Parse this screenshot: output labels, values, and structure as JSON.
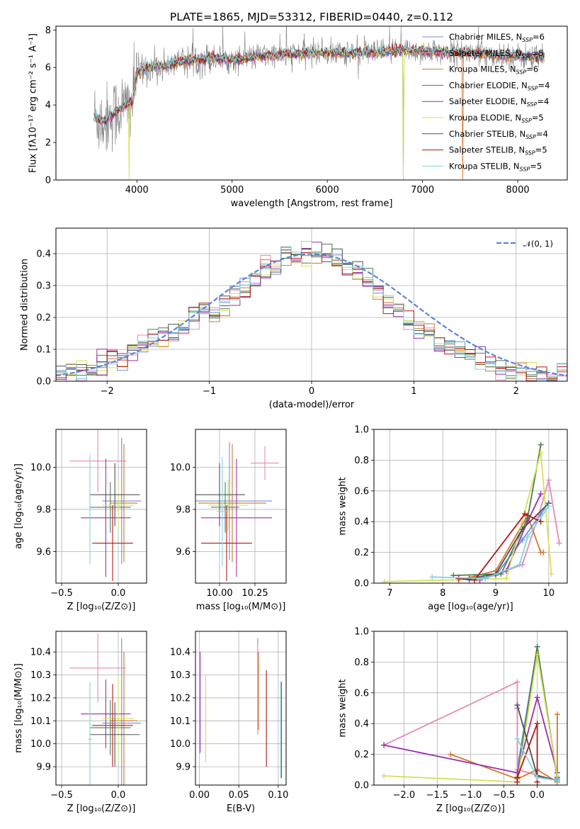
{
  "figure": {
    "title": "PLATE=1865, MJD=53312, FIBERID=0440, z=0.112"
  },
  "palette": {
    "Chabrier MILES": "#6a8fdc",
    "Salpeter MILES": "#e68ab8",
    "Kroupa MILES": "#d4782f",
    "Chabrier ELODIE": "#4f7d4f",
    "Salpeter ELODIE": "#9a2fb0",
    "Kroupa ELODIE": "#d7e05a",
    "Chabrier STELIB": "#505050",
    "Salpeter STELIB": "#b01818",
    "Kroupa STELIB": "#7fd6e0"
  },
  "chart_data": [
    {
      "id": "spectrum",
      "type": "line",
      "xlabel": "wavelength [Angstrom, rest frame]",
      "ylabel": "Flux [fλ10⁻¹⁷ erg cm⁻² s⁻¹ A⁻¹]",
      "xlim": [
        3150,
        8520
      ],
      "ylim": [
        0,
        8.2
      ],
      "xticks": [
        "4000",
        "5000",
        "6000",
        "7000",
        "8000"
      ],
      "xtick_values": [
        4000,
        5000,
        6000,
        7000,
        8000
      ],
      "yticks": [
        "0",
        "2",
        "4",
        "6",
        "8"
      ],
      "ytick_values": [
        0,
        2,
        4,
        6,
        8
      ],
      "grid": false,
      "legend_position": "top-right",
      "legend": [
        {
          "label": "Chabrier MILES, N",
          "sub": "SSP",
          "suffix": "=6"
        },
        {
          "label": "Salpeter MILES, N",
          "sub": "SSP",
          "suffix": "=5"
        },
        {
          "label": "Kroupa MILES, N",
          "sub": "SSP",
          "suffix": "=6"
        },
        {
          "label": "Chabrier ELODIE, N",
          "sub": "SSP",
          "suffix": "=4"
        },
        {
          "label": "Salpeter ELODIE, N",
          "sub": "SSP",
          "suffix": "=4"
        },
        {
          "label": "Kroupa ELODIE, N",
          "sub": "SSP",
          "suffix": "=5"
        },
        {
          "label": "Chabrier STELIB, N",
          "sub": "SSP",
          "suffix": "=4"
        },
        {
          "label": "Salpeter STELIB, N",
          "sub": "SSP",
          "suffix": "=5"
        },
        {
          "label": "Kroupa STELIB, N",
          "sub": "SSP",
          "suffix": "=5"
        }
      ],
      "continuum_knots": {
        "x": [
          3550,
          3650,
          3750,
          3850,
          3950,
          4000,
          4100,
          4300,
          4500,
          4800,
          5000,
          5300,
          5600,
          5900,
          6200,
          6500,
          6800,
          7100,
          7400,
          7700,
          8000,
          8250
        ],
        "y": [
          3.4,
          3.1,
          3.5,
          3.9,
          4.1,
          5.7,
          6.0,
          6.1,
          6.35,
          6.5,
          6.4,
          6.6,
          6.7,
          6.8,
          6.75,
          6.8,
          6.9,
          6.85,
          6.8,
          6.7,
          6.6,
          6.5
        ]
      }
    },
    {
      "id": "residuals",
      "type": "step",
      "xlabel": "(data-model)/error",
      "ylabel": "Normed distribution",
      "xlim": [
        -2.5,
        2.5
      ],
      "ylim": [
        0,
        0.48
      ],
      "xticks": [
        "−2",
        "−1",
        "0",
        "1",
        "2"
      ],
      "xtick_values": [
        -2,
        -1,
        0,
        1,
        2
      ],
      "yticks": [
        "0.0",
        "0.1",
        "0.2",
        "0.3",
        "0.4"
      ],
      "ytick_values": [
        0,
        0.1,
        0.2,
        0.3,
        0.4
      ],
      "grid": true,
      "legend_position": "top-right",
      "legend_label": "𝒩(0, 1)",
      "bin_edges_start": -2.5,
      "bin_width": 0.1,
      "hist": [
        0.02,
        0.03,
        0.03,
        0.035,
        0.05,
        0.07,
        0.08,
        0.09,
        0.11,
        0.13,
        0.14,
        0.15,
        0.17,
        0.2,
        0.22,
        0.21,
        0.25,
        0.28,
        0.3,
        0.33,
        0.35,
        0.36,
        0.38,
        0.39,
        0.4,
        0.41,
        0.39,
        0.38,
        0.36,
        0.34,
        0.31,
        0.28,
        0.25,
        0.22,
        0.19,
        0.17,
        0.15,
        0.13,
        0.11,
        0.09,
        0.08,
        0.06,
        0.05,
        0.045,
        0.035,
        0.03,
        0.025,
        0.02,
        0.02,
        0.015
      ]
    },
    {
      "id": "age-vs-Z",
      "type": "errorbar",
      "xlabel": "Z [log₁₀(Z/Z⊙)]",
      "ylabel": "age  [log₁₀(age/yr)]",
      "xlim": [
        -0.55,
        0.25
      ],
      "ylim": [
        9.45,
        10.18
      ],
      "xticks": [
        "−0.5",
        "0.0"
      ],
      "xtick_values": [
        -0.5,
        0.0
      ],
      "yticks": [
        "9.6",
        "9.8",
        "10.0"
      ],
      "ytick_values": [
        9.6,
        9.8,
        10.0
      ],
      "grid": true,
      "points": [
        {
          "series": "Chabrier MILES",
          "x": 0.03,
          "y": 9.84,
          "xerr": 0.17,
          "yerr": 0.3
        },
        {
          "series": "Salpeter MILES",
          "x": -0.18,
          "y": 10.03,
          "xerr": 0.25,
          "yerr": 0.15
        },
        {
          "series": "Kroupa MILES",
          "x": 0.05,
          "y": 9.83,
          "xerr": 0.12,
          "yerr": 0.28
        },
        {
          "series": "Chabrier ELODIE",
          "x": -0.07,
          "y": 9.81,
          "xerr": 0.18,
          "yerr": 0.12
        },
        {
          "series": "Salpeter ELODIE",
          "x": -0.11,
          "y": 9.76,
          "xerr": 0.22,
          "yerr": 0.28
        },
        {
          "series": "Kroupa ELODIE",
          "x": 0.0,
          "y": 9.82,
          "xerr": 0.14,
          "yerr": 0.12
        },
        {
          "series": "Chabrier STELIB",
          "x": -0.03,
          "y": 9.87,
          "xerr": 0.22,
          "yerr": 0.15
        },
        {
          "series": "Salpeter STELIB",
          "x": -0.05,
          "y": 9.64,
          "xerr": 0.18,
          "yerr": 0.18
        },
        {
          "series": "Kroupa STELIB",
          "x": -0.25,
          "y": 9.8,
          "xerr": 0.02,
          "yerr": 0.26
        }
      ]
    },
    {
      "id": "age-vs-mass",
      "type": "errorbar",
      "xlabel": "mass [log₁₀(M/M⊙)]",
      "ylabel": "",
      "xlim": [
        9.83,
        10.47
      ],
      "ylim": [
        9.45,
        10.18
      ],
      "xticks": [
        "10.00",
        "10.25"
      ],
      "xtick_values": [
        10.0,
        10.25
      ],
      "yticks": [
        "9.6",
        "9.8",
        "10.0"
      ],
      "ytick_values": [
        9.6,
        9.8,
        10.0
      ],
      "grid": true,
      "points": [
        {
          "series": "Chabrier MILES",
          "x": 10.07,
          "y": 9.84,
          "xerr": 0.3,
          "yerr": 0.28
        },
        {
          "series": "Salpeter MILES",
          "x": 10.32,
          "y": 10.02,
          "xerr": 0.1,
          "yerr": 0.08
        },
        {
          "series": "Kroupa MILES",
          "x": 10.09,
          "y": 9.83,
          "xerr": 0.24,
          "yerr": 0.28
        },
        {
          "series": "Chabrier ELODIE",
          "x": 10.04,
          "y": 9.81,
          "xerr": 0.1,
          "yerr": 0.12
        },
        {
          "series": "Salpeter ELODIE",
          "x": 10.12,
          "y": 9.76,
          "xerr": 0.25,
          "yerr": 0.28
        },
        {
          "series": "Kroupa ELODIE",
          "x": 10.06,
          "y": 9.82,
          "xerr": 0.14,
          "yerr": 0.12
        },
        {
          "series": "Chabrier STELIB",
          "x": 10.0,
          "y": 9.87,
          "xerr": 0.18,
          "yerr": 0.15
        },
        {
          "series": "Salpeter STELIB",
          "x": 10.05,
          "y": 9.64,
          "xerr": 0.18,
          "yerr": 0.18
        },
        {
          "series": "Kroupa STELIB",
          "x": 10.02,
          "y": 9.79,
          "xerr": 0.04,
          "yerr": 0.26
        }
      ]
    },
    {
      "id": "weight-vs-age",
      "type": "line",
      "xlabel": "age  [log₁₀(age/yr)]",
      "ylabel": "mass weight",
      "xlim": [
        6.7,
        10.35
      ],
      "ylim": [
        0,
        1.0
      ],
      "xticks": [
        "7",
        "8",
        "9",
        "10"
      ],
      "xtick_values": [
        7,
        8,
        9,
        10
      ],
      "yticks": [
        "0.0",
        "0.2",
        "0.4",
        "0.6",
        "0.8",
        "1.0"
      ],
      "ytick_values": [
        0,
        0.2,
        0.4,
        0.6,
        0.8,
        1.0
      ],
      "grid": true,
      "series": [
        {
          "name": "Chabrier MILES",
          "x": [
            8.5,
            9.0,
            9.5,
            9.85,
            10.0
          ],
          "y": [
            0.02,
            0.05,
            0.28,
            0.45,
            0.52
          ]
        },
        {
          "name": "Salpeter MILES",
          "x": [
            8.8,
            9.5,
            9.8,
            10.0,
            10.2
          ],
          "y": [
            0.03,
            0.12,
            0.43,
            0.67,
            0.26
          ]
        },
        {
          "name": "Kroupa MILES",
          "x": [
            8.3,
            9.0,
            9.6,
            9.85,
            9.9
          ],
          "y": [
            0.02,
            0.08,
            0.44,
            0.2,
            0.2
          ]
        },
        {
          "name": "Chabrier ELODIE",
          "x": [
            8.2,
            9.1,
            9.6,
            9.85
          ],
          "y": [
            0.05,
            0.06,
            0.42,
            0.9
          ]
        },
        {
          "name": "Salpeter ELODIE",
          "x": [
            8.7,
            9.2,
            9.6,
            9.85
          ],
          "y": [
            0.02,
            0.08,
            0.4,
            0.58
          ]
        },
        {
          "name": "Kroupa ELODIE",
          "x": [
            6.9,
            9.2,
            9.85,
            10.05
          ],
          "y": [
            0.01,
            0.03,
            0.85,
            0.06
          ]
        },
        {
          "name": "Chabrier STELIB",
          "x": [
            8.5,
            9.0,
            9.5,
            10.0
          ],
          "y": [
            0.03,
            0.06,
            0.35,
            0.52
          ]
        },
        {
          "name": "Salpeter STELIB",
          "x": [
            8.3,
            8.6,
            9.55,
            9.85
          ],
          "y": [
            0.03,
            0.02,
            0.45,
            0.4
          ]
        },
        {
          "name": "Kroupa STELIB",
          "x": [
            7.8,
            8.8,
            9.45,
            9.6,
            10.0
          ],
          "y": [
            0.04,
            0.03,
            0.12,
            0.3,
            0.5
          ]
        }
      ]
    },
    {
      "id": "mass-vs-Z",
      "type": "errorbar",
      "xlabel": "Z [log₁₀(Z/Z⊙)]",
      "ylabel": "mass [log₁₀(M/M⊙)]",
      "xlim": [
        -0.55,
        0.25
      ],
      "ylim": [
        9.82,
        10.49
      ],
      "xticks": [
        "−0.5",
        "0.0"
      ],
      "xtick_values": [
        -0.5,
        0.0
      ],
      "yticks": [
        "9.9",
        "10.0",
        "10.1",
        "10.2",
        "10.3",
        "10.4"
      ],
      "ytick_values": [
        9.9,
        10.0,
        10.1,
        10.2,
        10.3,
        10.4
      ],
      "grid": true,
      "points": [
        {
          "series": "Chabrier MILES",
          "x": 0.03,
          "y": 10.09,
          "xerr": 0.17,
          "yerr": 0.37
        },
        {
          "series": "Salpeter MILES",
          "x": -0.18,
          "y": 10.33,
          "xerr": 0.25,
          "yerr": 0.15
        },
        {
          "series": "Kroupa MILES",
          "x": 0.05,
          "y": 10.1,
          "xerr": 0.12,
          "yerr": 0.3
        },
        {
          "series": "Chabrier ELODIE",
          "x": -0.07,
          "y": 10.07,
          "xerr": 0.18,
          "yerr": 0.12
        },
        {
          "series": "Salpeter ELODIE",
          "x": -0.11,
          "y": 10.13,
          "xerr": 0.22,
          "yerr": 0.15
        },
        {
          "series": "Kroupa ELODIE",
          "x": 0.0,
          "y": 10.11,
          "xerr": 0.14,
          "yerr": 0.19
        },
        {
          "series": "Chabrier STELIB",
          "x": -0.03,
          "y": 10.04,
          "xerr": 0.22,
          "yerr": 0.14
        },
        {
          "series": "Salpeter STELIB",
          "x": -0.05,
          "y": 10.08,
          "xerr": 0.18,
          "yerr": 0.18
        },
        {
          "series": "Kroupa STELIB",
          "x": -0.25,
          "y": 10.02,
          "xerr": 0.02,
          "yerr": 0.25
        }
      ]
    },
    {
      "id": "mass-vs-EBV",
      "type": "errorbar",
      "xlabel": "E(B-V)",
      "ylabel": "",
      "xlim": [
        -0.005,
        0.11
      ],
      "ylim": [
        9.82,
        10.49
      ],
      "xticks": [
        "0.00",
        "0.05",
        "0.10"
      ],
      "xtick_values": [
        0.0,
        0.05,
        0.1
      ],
      "yticks": [
        "9.9",
        "10.0",
        "10.1",
        "10.2",
        "10.3",
        "10.4"
      ],
      "ytick_values": [
        9.9,
        10.0,
        10.1,
        10.2,
        10.3,
        10.4
      ],
      "grid": true,
      "points": [
        {
          "series": "Chabrier MILES",
          "x": 0.074,
          "y": 10.26,
          "xerr": 0,
          "yerr": 0.2
        },
        {
          "series": "Salpeter MILES",
          "x": 0.074,
          "y": 10.24,
          "xerr": 0,
          "yerr": 0.2
        },
        {
          "series": "Kroupa MILES",
          "x": 0.075,
          "y": 10.23,
          "xerr": 0,
          "yerr": 0.17
        },
        {
          "series": "Chabrier ELODIE",
          "x": 0.008,
          "y": 10.11,
          "xerr": 0,
          "yerr": 0.19
        },
        {
          "series": "Salpeter ELODIE",
          "x": 0.001,
          "y": 10.18,
          "xerr": 0,
          "yerr": 0.22
        },
        {
          "series": "Kroupa ELODIE",
          "x": 0.008,
          "y": 10.11,
          "xerr": 0,
          "yerr": 0.19
        },
        {
          "series": "Chabrier STELIB",
          "x": 0.104,
          "y": 10.06,
          "xerr": 0,
          "yerr": 0.21
        },
        {
          "series": "Salpeter STELIB",
          "x": 0.085,
          "y": 10.11,
          "xerr": 0,
          "yerr": 0.21
        },
        {
          "series": "Kroupa STELIB",
          "x": 0.103,
          "y": 10.06,
          "xerr": 0,
          "yerr": 0.21
        }
      ]
    },
    {
      "id": "weight-vs-Z",
      "type": "line",
      "xlabel": "Z [log₁₀(Z/Z⊙)]",
      "ylabel": "mass weight",
      "xlim": [
        -2.45,
        0.45
      ],
      "ylim": [
        0,
        1.0
      ],
      "xticks": [
        "−2.0",
        "−1.5",
        "−1.0",
        "−0.5",
        "0.0"
      ],
      "xtick_values": [
        -2.0,
        -1.5,
        -1.0,
        -0.5,
        0.0
      ],
      "yticks": [
        "0.0",
        "0.2",
        "0.4",
        "0.6",
        "0.8",
        "1.0"
      ],
      "ytick_values": [
        0,
        0.2,
        0.4,
        0.6,
        0.8,
        1.0
      ],
      "grid": true,
      "series": [
        {
          "name": "Chabrier MILES",
          "x": [
            -0.3,
            -0.3,
            0.0,
            0.3
          ],
          "y": [
            0.5,
            0.1,
            0.9,
            0.04
          ]
        },
        {
          "name": "Salpeter MILES",
          "x": [
            -2.3,
            -0.3,
            -0.3,
            0.3
          ],
          "y": [
            0.26,
            0.67,
            0.1,
            0.03
          ]
        },
        {
          "name": "Kroupa MILES",
          "x": [
            -1.3,
            -0.3,
            0.0,
            0.3,
            0.3
          ],
          "y": [
            0.2,
            0.04,
            0.1,
            0.02,
            0.46
          ]
        },
        {
          "name": "Chabrier ELODIE",
          "x": [
            -0.3,
            0.0,
            0.3
          ],
          "y": [
            0.05,
            0.9,
            0.05
          ]
        },
        {
          "name": "Salpeter ELODIE",
          "x": [
            -2.3,
            -0.3,
            0.0,
            0.3
          ],
          "y": [
            0.26,
            0.08,
            0.57,
            0.08
          ]
        },
        {
          "name": "Kroupa ELODIE",
          "x": [
            -2.3,
            -0.3,
            0.0,
            0.3
          ],
          "y": [
            0.06,
            0.02,
            0.85,
            0.06
          ]
        },
        {
          "name": "Chabrier STELIB",
          "x": [
            -0.3,
            0.0,
            0.3
          ],
          "y": [
            0.52,
            0.06,
            0.03
          ]
        },
        {
          "name": "Salpeter STELIB",
          "x": [
            -0.3,
            -0.3,
            0.0,
            0.0
          ],
          "y": [
            0.02,
            0.05,
            0.4,
            0.02
          ]
        },
        {
          "name": "Kroupa STELIB",
          "x": [
            -0.3,
            0.0,
            0.3
          ],
          "y": [
            0.3,
            0.05,
            0.03
          ]
        }
      ]
    }
  ]
}
